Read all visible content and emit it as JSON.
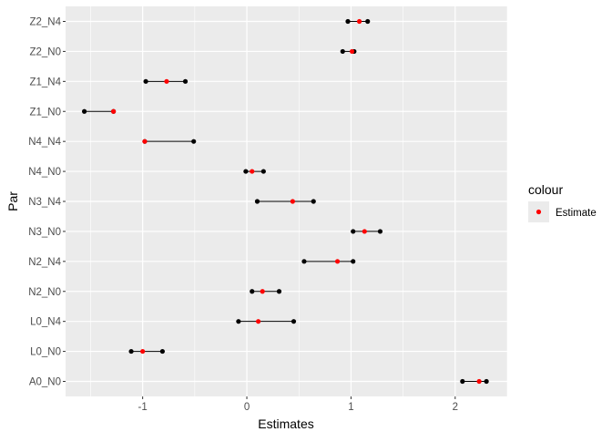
{
  "chart_data": {
    "type": "dot-interval",
    "xlabel": "Estimates",
    "ylabel": "Par",
    "xlim": [
      -1.74,
      2.5
    ],
    "x_ticks": [
      -1,
      0,
      1,
      2
    ],
    "x_tick_labels": [
      "-1",
      "0",
      "1",
      "2"
    ],
    "grid": true,
    "legend": {
      "title": "colour",
      "entries": [
        "Estimate"
      ],
      "position": "right"
    },
    "colors": {
      "estimate": "#ff0000",
      "bounds": "#000000",
      "panel": "#ebebeb",
      "grid": "#ffffff"
    },
    "categories": [
      "A0_N0",
      "L0_N0",
      "L0_N4",
      "N2_N0",
      "N2_N4",
      "N3_N0",
      "N3_N4",
      "N4_N0",
      "N4_N4",
      "Z1_N0",
      "Z1_N4",
      "Z2_N0",
      "Z2_N4"
    ],
    "lower": [
      2.07,
      -1.11,
      -0.08,
      0.05,
      0.55,
      1.02,
      0.1,
      -0.01,
      -0.98,
      -1.56,
      -0.97,
      0.92,
      0.97
    ],
    "estimate": [
      2.23,
      -1.0,
      0.11,
      0.15,
      0.87,
      1.13,
      0.44,
      0.05,
      -0.98,
      -1.28,
      -0.77,
      1.01,
      1.08
    ],
    "upper": [
      2.3,
      -0.81,
      0.45,
      0.31,
      1.02,
      1.28,
      0.64,
      0.16,
      -0.51,
      -1.28,
      -0.59,
      1.03,
      1.16
    ]
  }
}
